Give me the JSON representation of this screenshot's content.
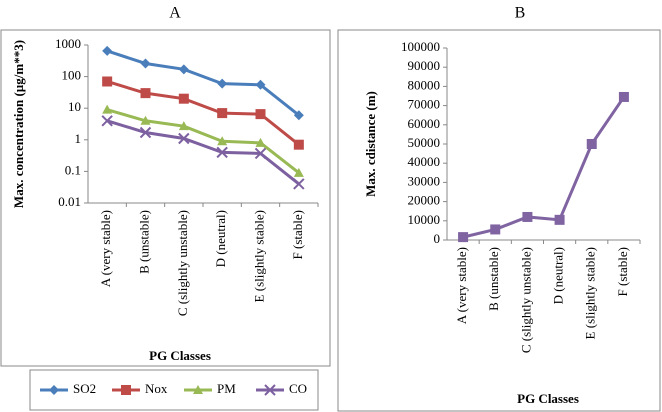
{
  "chart_data": [
    {
      "type": "line",
      "title": "A",
      "ylabel": "Max. concentration (µg/m**3)",
      "xlabel": "PG Classes",
      "categories": [
        "A (very stable)",
        "B (unstable)",
        "C (slightly unstable)",
        "D (neutral)",
        "E (slightly stable)",
        "F (stable)"
      ],
      "log_y": true,
      "ylim": [
        0.01,
        1000
      ],
      "yticks": [
        0.01,
        0.1,
        1,
        10,
        100,
        1000
      ],
      "legend": "bottom",
      "series": [
        {
          "name": "SO2",
          "color": "#4a7ebb",
          "marker": "diamond",
          "values": [
            650,
            260,
            170,
            60,
            55,
            6
          ]
        },
        {
          "name": "Nox",
          "color": "#be4b48",
          "marker": "square",
          "values": [
            70,
            30,
            20,
            7,
            6.5,
            0.7
          ]
        },
        {
          "name": "PM",
          "color": "#98b954",
          "marker": "triangle",
          "values": [
            9,
            4,
            2.7,
            0.9,
            0.8,
            0.09
          ]
        },
        {
          "name": "CO",
          "color": "#7d60a0",
          "marker": "x",
          "values": [
            4,
            1.7,
            1.1,
            0.4,
            0.37,
            0.04
          ]
        }
      ]
    },
    {
      "type": "line",
      "title": "B",
      "ylabel": "Max. cdistance (m)",
      "xlabel": "PG Classes",
      "categories": [
        "A (very stable)",
        "B (unstable)",
        "C (slightly unstable)",
        "D (neutral)",
        "E (slightly stable)",
        "F (stable)"
      ],
      "ylim": [
        0,
        100000
      ],
      "yticks": [
        0,
        10000,
        20000,
        30000,
        40000,
        50000,
        60000,
        70000,
        80000,
        90000,
        100000
      ],
      "series": [
        {
          "color": "#8064a2",
          "marker": "square",
          "values": [
            1500,
            5500,
            12000,
            10500,
            50000,
            74500
          ]
        }
      ]
    }
  ]
}
